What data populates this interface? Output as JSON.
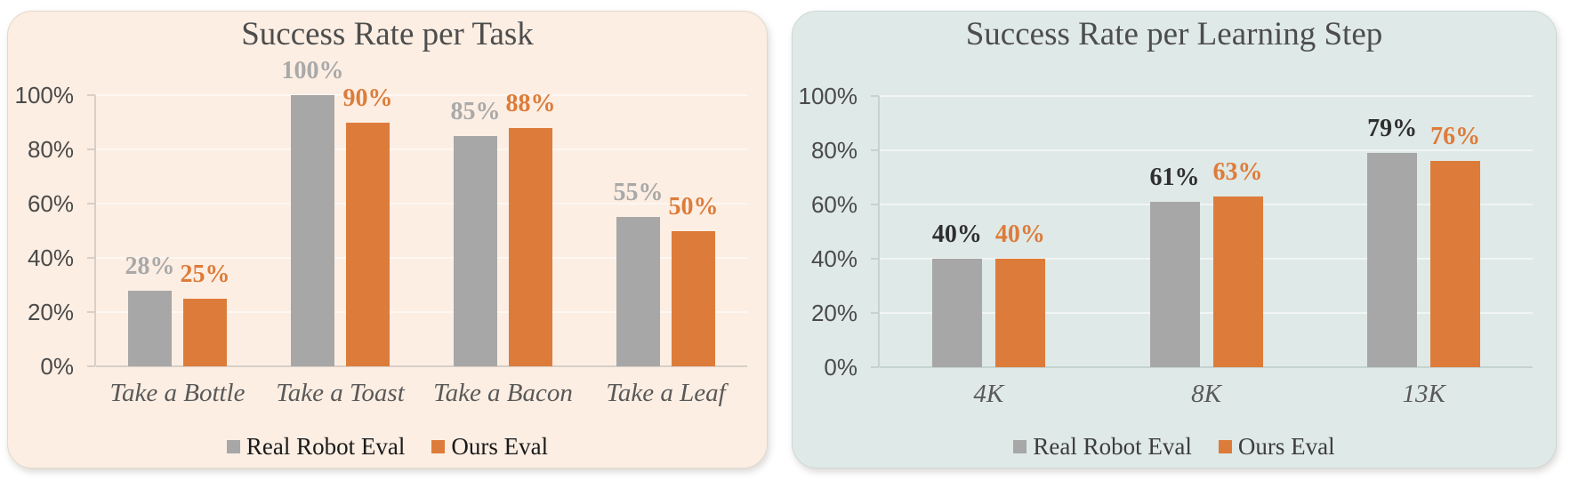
{
  "colors": {
    "page_bg": "#ffffff",
    "series": [
      "#a7a7a7",
      "#dd7c3a"
    ]
  },
  "legend": {
    "items": [
      {
        "label": "Real Robot Eval",
        "swatch_color": "#a7a7a7"
      },
      {
        "label": "Ours Eval",
        "swatch_color": "#dd7c3a"
      }
    ]
  },
  "chart_data": [
    {
      "type": "bar",
      "title": "Success Rate per Task",
      "categories": [
        "Take a Bottle",
        "Take a Toast",
        "Take a Bacon",
        "Take a Leaf"
      ],
      "series": [
        {
          "name": "Real Robot Eval",
          "values": [
            28,
            100,
            85,
            55
          ]
        },
        {
          "name": "Ours Eval",
          "values": [
            25,
            90,
            88,
            50
          ]
        }
      ],
      "y_ticks": [
        {
          "v": 0,
          "label": "0%"
        },
        {
          "v": 20,
          "label": "20%"
        },
        {
          "v": 40,
          "label": "40%"
        },
        {
          "v": 60,
          "label": "60%"
        },
        {
          "v": 80,
          "label": "80%"
        },
        {
          "v": 100,
          "label": "100%"
        }
      ],
      "ylim": [
        0,
        100
      ],
      "grid": true,
      "legend_position": "bottom",
      "panel_bg": "#fceee3",
      "panel_border": "#e3d8cd",
      "axis_color": "#d8cfc7",
      "gridline_color": "rgba(255,255,255,0.55)",
      "value_label_colors": [
        "#a9a9a9",
        "#dd7c3a"
      ],
      "legend_text_color": "#1a1a1a"
    },
    {
      "type": "bar",
      "title": "Success Rate per Learning Step",
      "categories": [
        "4K",
        "8K",
        "13K"
      ],
      "series": [
        {
          "name": "Real Robot Eval",
          "values": [
            40,
            61,
            79
          ]
        },
        {
          "name": "Ours Eval",
          "values": [
            40,
            63,
            76
          ]
        }
      ],
      "y_ticks": [
        {
          "v": 0,
          "label": "0%"
        },
        {
          "v": 20,
          "label": "20%"
        },
        {
          "v": 40,
          "label": "40%"
        },
        {
          "v": 60,
          "label": "60%"
        },
        {
          "v": 80,
          "label": "80%"
        },
        {
          "v": 100,
          "label": "100%"
        }
      ],
      "ylim": [
        0,
        100
      ],
      "grid": true,
      "legend_position": "bottom",
      "panel_bg": "#dfe9e7",
      "panel_border": "#cdd9d6",
      "axis_color": "#c6d3d0",
      "gridline_color": "rgba(255,255,255,0.55)",
      "value_label_colors": [
        "#2f2f2f",
        "#dd7c3a"
      ],
      "legend_text_color": "#3d3d3d"
    }
  ]
}
